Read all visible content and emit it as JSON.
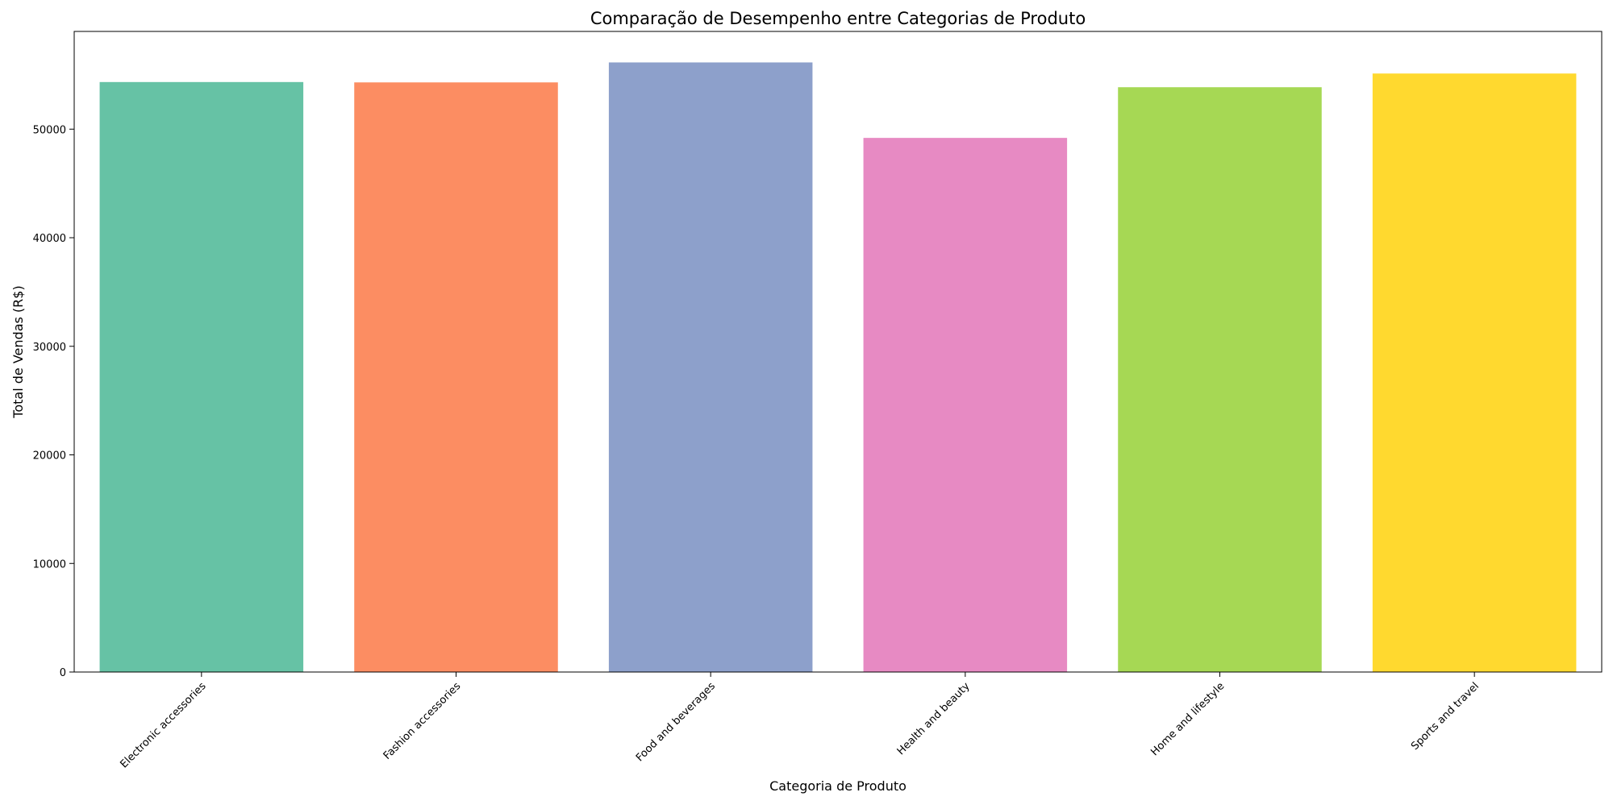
{
  "chart_data": {
    "type": "bar",
    "title": "Comparação de Desempenho entre Categorias de Produto",
    "xlabel": "Categoria de Produto",
    "ylabel": "Total de Vendas (R$)",
    "categories": [
      "Electronic accessories",
      "Fashion accessories",
      "Food and beverages",
      "Health and beauty",
      "Home and lifestyle",
      "Sports and travel"
    ],
    "values": [
      54338,
      54306,
      56145,
      49194,
      53862,
      55123
    ],
    "colors": [
      "#66c2a5",
      "#fc8d62",
      "#8da0cb",
      "#e78ac3",
      "#a6d854",
      "#ffd92f"
    ],
    "ylim": [
      0,
      59000
    ],
    "yticks": [
      0,
      10000,
      20000,
      30000,
      40000,
      50000
    ],
    "ytick_labels": [
      "0",
      "10000",
      "20000",
      "30000",
      "40000",
      "50000"
    ],
    "grid": false,
    "legend": false,
    "xtick_rotation_deg": 45
  }
}
